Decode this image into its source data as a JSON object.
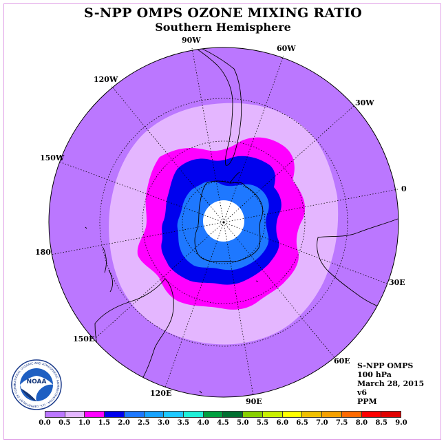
{
  "title": "S-NPP OMPS OZONE MIXING RATIO",
  "subtitle": "Southern Hemisphere",
  "longitude_labels": [
    "90W",
    "60W",
    "30W",
    "0",
    "30E",
    "60E",
    "90E",
    "120E",
    "150E",
    "180",
    "150W",
    "120W"
  ],
  "info": {
    "instrument": "S-NPP OMPS",
    "level": "100 hPa",
    "date": "March 28, 2015",
    "version": "v6",
    "units": "PPM"
  },
  "logo": {
    "text": "NOAA",
    "ring_text": "NATIONAL OCEANIC AND ATMOSPHERIC ADMINISTRATION · U.S. DEPARTMENT OF COMMERCE"
  },
  "colorbar": {
    "ticks": [
      "0.0",
      "0.5",
      "1.0",
      "1.5",
      "2.0",
      "2.5",
      "3.0",
      "3.5",
      "4.0",
      "4.5",
      "5.0",
      "5.5",
      "6.0",
      "6.5",
      "7.0",
      "7.5",
      "8.0",
      "8.5",
      "9.0"
    ],
    "colors": [
      "#bb77ff",
      "#e4b6ff",
      "#ff00ff",
      "#0000ee",
      "#1e78ff",
      "#18a3ff",
      "#1ec8ff",
      "#20f0d8",
      "#00a040",
      "#006f30",
      "#88d000",
      "#c8f000",
      "#ffff00",
      "#f0c000",
      "#f5a000",
      "#ff6a00",
      "#ff0000",
      "#e00000",
      "#8b4a2a"
    ]
  },
  "map_colors": {
    "background_disk": "#bb77ff",
    "band_0_5": "#e4b6ff",
    "band_1_0": "#ff00ff",
    "band_1_5": "#0000ee",
    "band_2_0": "#1e78ff",
    "polar_hole": "#ffffff"
  }
}
